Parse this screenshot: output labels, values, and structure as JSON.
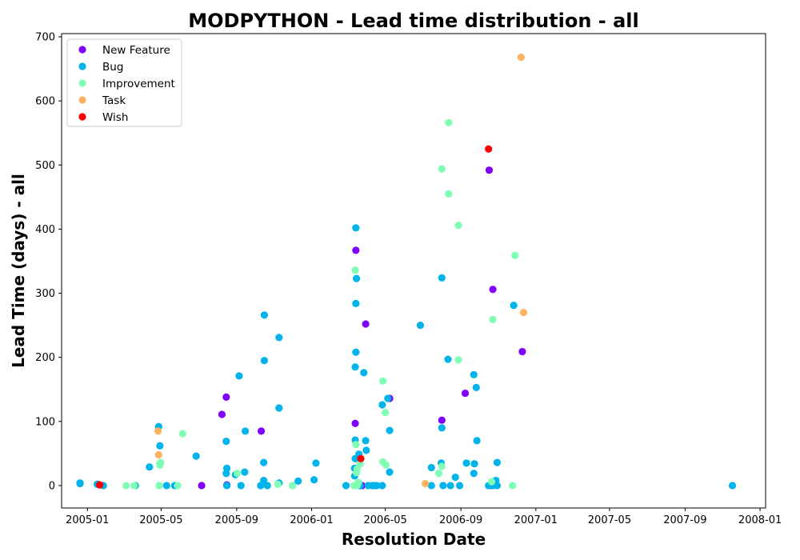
{
  "chart_data": {
    "type": "scatter",
    "title": "MODPYTHON - Lead time distribution - all",
    "xlabel": "Resolution Date",
    "ylabel": "Lead Time (days) - all",
    "x_axis_type": "date",
    "xlim": [
      "2004-11-20",
      "2008-01-10"
    ],
    "ylim": [
      -35,
      705
    ],
    "x_ticks": [
      "2005-01-01",
      "2005-05-01",
      "2005-09-01",
      "2006-01-01",
      "2006-05-01",
      "2006-09-01",
      "2007-01-01",
      "2007-05-01",
      "2007-09-01",
      "2008-01-01"
    ],
    "x_tick_labels": [
      "2005-01",
      "2005-05",
      "2005-09",
      "2006-01",
      "2006-05",
      "2006-09",
      "2007-01",
      "2007-05",
      "2007-09",
      "2008-01"
    ],
    "y_ticks": [
      0,
      100,
      200,
      300,
      400,
      500,
      600,
      700
    ],
    "y_tick_labels": [
      "0",
      "100",
      "200",
      "300",
      "400",
      "500",
      "600",
      "700"
    ],
    "grid": false,
    "legend_position": "top-left",
    "series": [
      {
        "name": "New Feature",
        "color": "#8000ff",
        "points": [
          [
            "2005-01-18",
            2
          ],
          [
            "2005-07-06",
            0
          ],
          [
            "2005-08-08",
            111
          ],
          [
            "2005-08-15",
            138
          ],
          [
            "2005-08-16",
            1
          ],
          [
            "2005-10-11",
            85
          ],
          [
            "2006-03-13",
            97
          ],
          [
            "2006-03-14",
            367
          ],
          [
            "2006-03-24",
            0
          ],
          [
            "2006-03-30",
            252
          ],
          [
            "2006-05-08",
            136
          ],
          [
            "2006-08-01",
            102
          ],
          [
            "2006-09-08",
            144
          ],
          [
            "2006-10-17",
            492
          ],
          [
            "2006-10-18",
            0
          ],
          [
            "2006-10-23",
            306
          ],
          [
            "2006-12-10",
            209
          ]
        ]
      },
      {
        "name": "Bug",
        "color": "#00b4eb",
        "points": [
          [
            "2004-12-20",
            4
          ],
          [
            "2004-12-20",
            3
          ],
          [
            "2005-01-17",
            2
          ],
          [
            "2005-01-27",
            0
          ],
          [
            "2005-03-20",
            0
          ],
          [
            "2005-04-12",
            29
          ],
          [
            "2005-04-27",
            92
          ],
          [
            "2005-04-28",
            0
          ],
          [
            "2005-04-29",
            62
          ],
          [
            "2005-04-29",
            34
          ],
          [
            "2005-05-10",
            0
          ],
          [
            "2005-05-23",
            0
          ],
          [
            "2005-06-27",
            46
          ],
          [
            "2005-08-15",
            19
          ],
          [
            "2005-08-15",
            69
          ],
          [
            "2005-08-16",
            0
          ],
          [
            "2005-08-16",
            27
          ],
          [
            "2005-08-30",
            17
          ],
          [
            "2005-09-05",
            171
          ],
          [
            "2005-09-08",
            0
          ],
          [
            "2005-09-14",
            21
          ],
          [
            "2005-09-15",
            85
          ],
          [
            "2005-10-10",
            0
          ],
          [
            "2005-10-15",
            8
          ],
          [
            "2005-10-15",
            36
          ],
          [
            "2005-10-16",
            266
          ],
          [
            "2005-10-16",
            195
          ],
          [
            "2005-10-21",
            0
          ],
          [
            "2005-11-09",
            231
          ],
          [
            "2005-11-09",
            121
          ],
          [
            "2005-11-09",
            4
          ],
          [
            "2005-12-01",
            0
          ],
          [
            "2005-12-10",
            7
          ],
          [
            "2006-01-05",
            9
          ],
          [
            "2006-01-08",
            35
          ],
          [
            "2006-02-26",
            0
          ],
          [
            "2006-03-12",
            15
          ],
          [
            "2006-03-12",
            27
          ],
          [
            "2006-03-13",
            42
          ],
          [
            "2006-03-13",
            71
          ],
          [
            "2006-03-13",
            185
          ],
          [
            "2006-03-14",
            284
          ],
          [
            "2006-03-14",
            402
          ],
          [
            "2006-03-14",
            208
          ],
          [
            "2006-03-15",
            323
          ],
          [
            "2006-03-18",
            0
          ],
          [
            "2006-03-19",
            49
          ],
          [
            "2006-03-21",
            0
          ],
          [
            "2006-03-27",
            176
          ],
          [
            "2006-03-30",
            70
          ],
          [
            "2006-03-31",
            55
          ],
          [
            "2006-04-03",
            0
          ],
          [
            "2006-04-10",
            0
          ],
          [
            "2006-04-15",
            0
          ],
          [
            "2006-04-17",
            0
          ],
          [
            "2006-04-26",
            0
          ],
          [
            "2006-04-26",
            126
          ],
          [
            "2006-05-05",
            136
          ],
          [
            "2006-05-08",
            21
          ],
          [
            "2006-05-08",
            86
          ],
          [
            "2006-06-27",
            250
          ],
          [
            "2006-07-15",
            0
          ],
          [
            "2006-07-15",
            28
          ],
          [
            "2006-07-31",
            35
          ],
          [
            "2006-08-01",
            324
          ],
          [
            "2006-08-01",
            90
          ],
          [
            "2006-08-03",
            0
          ],
          [
            "2006-08-11",
            197
          ],
          [
            "2006-08-15",
            0
          ],
          [
            "2006-08-23",
            13
          ],
          [
            "2006-08-30",
            0
          ],
          [
            "2006-09-10",
            35
          ],
          [
            "2006-09-22",
            19
          ],
          [
            "2006-09-22",
            173
          ],
          [
            "2006-09-23",
            34
          ],
          [
            "2006-09-26",
            153
          ],
          [
            "2006-09-27",
            70
          ],
          [
            "2006-10-16",
            0
          ],
          [
            "2006-10-17",
            0
          ],
          [
            "2006-10-23",
            0
          ],
          [
            "2006-10-28",
            8
          ],
          [
            "2006-10-30",
            36
          ],
          [
            "2006-10-30",
            0
          ],
          [
            "2006-11-26",
            281
          ],
          [
            "2007-11-17",
            0
          ]
        ]
      },
      {
        "name": "Improvement",
        "color": "#80ffb4",
        "points": [
          [
            "2005-03-05",
            0
          ],
          [
            "2005-03-18",
            0
          ],
          [
            "2005-04-28",
            0
          ],
          [
            "2005-04-29",
            32
          ],
          [
            "2005-04-30",
            36
          ],
          [
            "2005-05-28",
            0
          ],
          [
            "2005-06-05",
            81
          ],
          [
            "2005-09-02",
            19
          ],
          [
            "2005-11-07",
            2
          ],
          [
            "2005-12-01",
            0
          ],
          [
            "2006-03-11",
            0
          ],
          [
            "2006-03-13",
            336
          ],
          [
            "2006-03-14",
            64
          ],
          [
            "2006-03-15",
            20
          ],
          [
            "2006-03-16",
            0
          ],
          [
            "2006-03-16",
            26
          ],
          [
            "2006-03-18",
            5
          ],
          [
            "2006-03-21",
            34
          ],
          [
            "2006-04-27",
            163
          ],
          [
            "2006-04-27",
            37
          ],
          [
            "2006-05-01",
            114
          ],
          [
            "2006-05-02",
            32
          ],
          [
            "2006-07-27",
            19
          ],
          [
            "2006-08-01",
            30
          ],
          [
            "2006-08-01",
            494
          ],
          [
            "2006-08-12",
            566
          ],
          [
            "2006-08-12",
            455
          ],
          [
            "2006-08-28",
            406
          ],
          [
            "2006-08-28",
            196
          ],
          [
            "2006-10-21",
            6
          ],
          [
            "2006-10-23",
            259
          ],
          [
            "2006-11-24",
            0
          ],
          [
            "2006-11-28",
            359
          ]
        ]
      },
      {
        "name": "Task",
        "color": "#ffb360",
        "points": [
          [
            "2005-04-26",
            85
          ],
          [
            "2005-04-27",
            48
          ],
          [
            "2006-07-05",
            3
          ],
          [
            "2006-12-08",
            668
          ],
          [
            "2006-12-12",
            270
          ]
        ]
      },
      {
        "name": "Wish",
        "color": "#ff0000",
        "points": [
          [
            "2005-01-21",
            1
          ],
          [
            "2006-03-22",
            42
          ],
          [
            "2006-10-16",
            525
          ]
        ]
      }
    ]
  }
}
